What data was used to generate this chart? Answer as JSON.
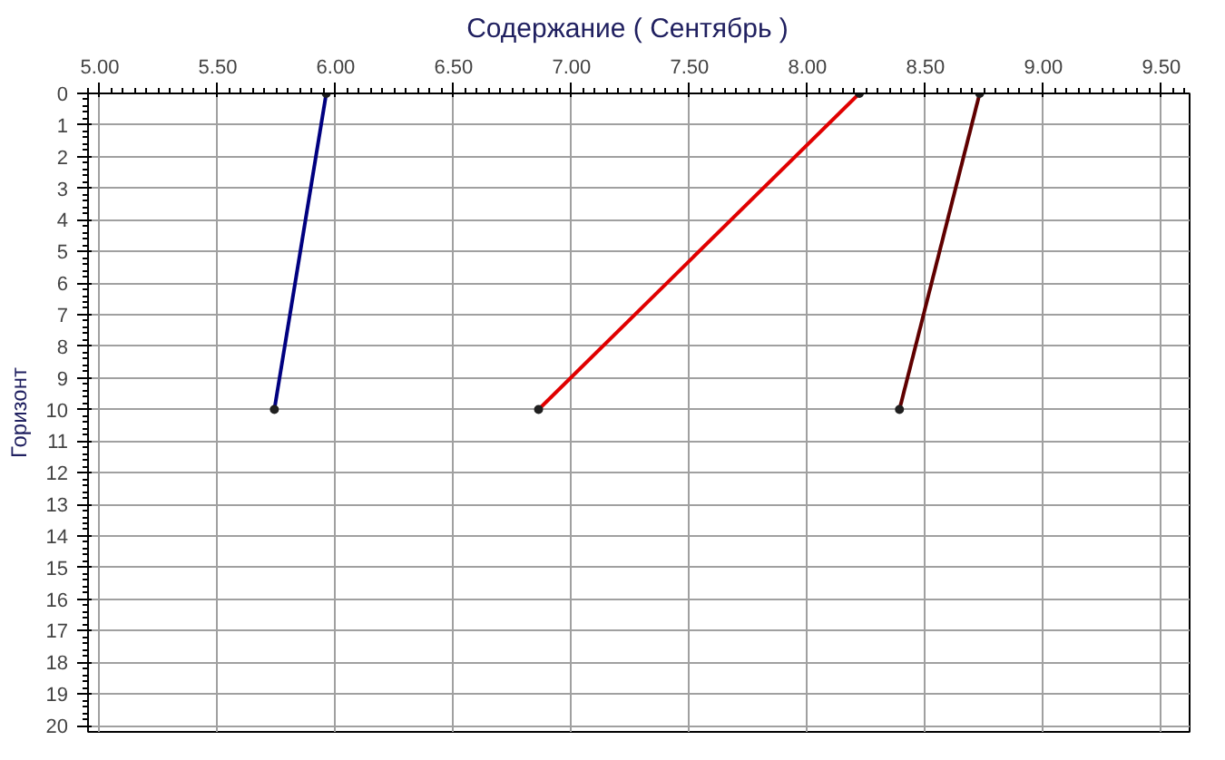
{
  "chart_data": {
    "type": "line",
    "title": "Содержание    ( Сентябрь )",
    "ylabel": "Горизонт",
    "xlim": [
      4.95,
      9.62
    ],
    "xticks": [
      {
        "value": 5,
        "label": "5.00"
      },
      {
        "value": 5.5,
        "label": "5.50"
      },
      {
        "value": 6,
        "label": "6.00"
      },
      {
        "value": 6.5,
        "label": "6.50"
      },
      {
        "value": 7,
        "label": "7.00"
      },
      {
        "value": 7.5,
        "label": "7.50"
      },
      {
        "value": 8,
        "label": "8.00"
      },
      {
        "value": 8.5,
        "label": "8.50"
      },
      {
        "value": 9,
        "label": "9.00"
      },
      {
        "value": 9.5,
        "label": "9.50"
      }
    ],
    "ylim": [
      20.2,
      0
    ],
    "yticks": [
      0,
      1,
      2,
      3,
      4,
      5,
      6,
      7,
      8,
      9,
      10,
      11,
      12,
      13,
      14,
      15,
      16,
      17,
      18,
      19,
      20
    ],
    "grid": true,
    "marker": "circle",
    "line_style": "solid",
    "series": [
      {
        "color": "#000080",
        "x": [
          5.96,
          5.74
        ],
        "values": [
          0,
          10
        ]
      },
      {
        "color": "#e00000",
        "x": [
          8.22,
          6.86
        ],
        "values": [
          0,
          10
        ]
      },
      {
        "color": "#600000",
        "x": [
          8.73,
          8.39
        ],
        "values": [
          0,
          10
        ]
      }
    ]
  }
}
